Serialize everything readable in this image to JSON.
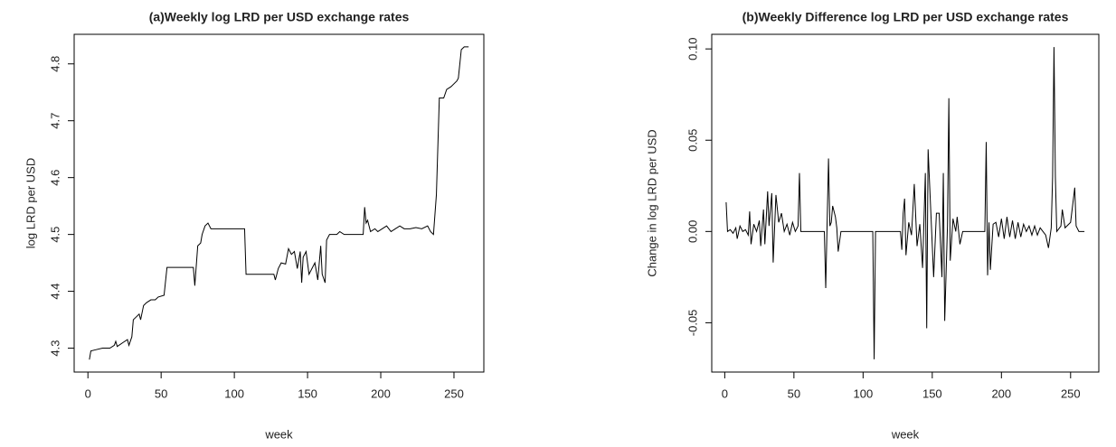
{
  "chart_data": [
    {
      "type": "line",
      "title": "(a)Weekly log LRD per USD exchange rates",
      "xlabel": "week",
      "ylabel": "log LRD per USD",
      "x": [
        1,
        2,
        5,
        10,
        15,
        18,
        19,
        20,
        24,
        27,
        28,
        30,
        31,
        33,
        35,
        36,
        38,
        40,
        43,
        46,
        48,
        52,
        54,
        72,
        73,
        75,
        77,
        78,
        80,
        82,
        84,
        107,
        108,
        127,
        128,
        130,
        132,
        135,
        137,
        139,
        141,
        143,
        145,
        146,
        147,
        149,
        151,
        153,
        155,
        157,
        159,
        160,
        162,
        163,
        165,
        170,
        172,
        175,
        188,
        189,
        190,
        191,
        193,
        196,
        198,
        201,
        204,
        207,
        210,
        213,
        216,
        220,
        224,
        228,
        232,
        234,
        236,
        238,
        240,
        243,
        245,
        248,
        252,
        253,
        255,
        257,
        260
      ],
      "series": [
        {
          "color": "#000000",
          "values": [
            4.28,
            4.295,
            4.297,
            4.3,
            4.3,
            4.305,
            4.312,
            4.303,
            4.31,
            4.315,
            4.305,
            4.32,
            4.35,
            4.355,
            4.36,
            4.35,
            4.375,
            4.38,
            4.385,
            4.385,
            4.39,
            4.393,
            4.442,
            4.442,
            4.41,
            4.48,
            4.485,
            4.5,
            4.515,
            4.52,
            4.51,
            4.51,
            4.43,
            4.43,
            4.42,
            4.44,
            4.45,
            4.448,
            4.475,
            4.465,
            4.47,
            4.44,
            4.47,
            4.415,
            4.46,
            4.47,
            4.43,
            4.44,
            4.45,
            4.42,
            4.48,
            4.43,
            4.415,
            4.49,
            4.5,
            4.5,
            4.505,
            4.5,
            4.5,
            4.548,
            4.52,
            4.525,
            4.505,
            4.51,
            4.505,
            4.51,
            4.515,
            4.505,
            4.51,
            4.515,
            4.51,
            4.51,
            4.512,
            4.51,
            4.515,
            4.505,
            4.5,
            4.57,
            4.74,
            4.74,
            4.755,
            4.76,
            4.77,
            4.775,
            4.825,
            4.83,
            4.83
          ]
        }
      ],
      "xlim": [
        -9.4,
        270.4
      ],
      "ylim": [
        4.258,
        4.852
      ],
      "xticks": [
        0,
        50,
        100,
        150,
        200,
        250
      ],
      "yticks": [
        4.3,
        4.4,
        4.5,
        4.6,
        4.7,
        4.8
      ]
    },
    {
      "type": "line",
      "title": "(b)Weekly Difference log LRD per USD exchange rates",
      "xlabel": "week",
      "ylabel": "Change in log LRD per USD",
      "x": [
        1,
        2,
        4,
        6,
        8,
        9,
        11,
        13,
        15,
        17,
        18,
        19,
        21,
        23,
        25,
        26,
        28,
        29,
        31,
        32,
        34,
        35,
        37,
        39,
        41,
        43,
        45,
        47,
        49,
        51,
        53,
        54,
        55,
        72,
        73,
        75,
        76,
        77,
        78,
        80,
        81,
        82,
        84,
        107,
        108,
        109,
        127,
        128,
        129,
        130,
        131,
        133,
        135,
        137,
        139,
        141,
        143,
        145,
        146,
        147,
        149,
        151,
        153,
        155,
        157,
        158,
        159,
        161,
        162,
        163,
        165,
        167,
        168,
        170,
        172,
        188,
        189,
        190,
        191,
        192,
        194,
        196,
        198,
        200,
        202,
        204,
        206,
        208,
        210,
        212,
        214,
        216,
        218,
        220,
        222,
        224,
        226,
        228,
        230,
        232,
        234,
        236,
        237,
        238,
        239,
        240,
        243,
        244,
        246,
        250,
        253,
        254,
        256,
        260
      ],
      "series": [
        {
          "color": "#000000",
          "values": [
            0.016,
            0,
            0.001,
            -0.001,
            0.002,
            -0.004,
            0.003,
            0,
            0.001,
            -0.002,
            0.011,
            -0.007,
            0.004,
            0,
            0.006,
            -0.008,
            0.012,
            -0.007,
            0.022,
            0.003,
            0.021,
            -0.017,
            0.02,
            0.005,
            0.01,
            0,
            0.004,
            -0.002,
            0.005,
            0,
            0.003,
            0.032,
            0,
            0,
            -0.031,
            0.04,
            0.003,
            0.005,
            0.014,
            0.008,
            0.002,
            -0.011,
            0,
            0,
            -0.07,
            0,
            0,
            -0.01,
            0.01,
            0.018,
            -0.013,
            0.005,
            -0.002,
            0.026,
            -0.008,
            0.004,
            -0.02,
            0.032,
            -0.053,
            0.045,
            0.01,
            -0.025,
            0.01,
            0.01,
            -0.025,
            0.032,
            -0.049,
            0.003,
            0.073,
            -0.016,
            0.007,
            0,
            0.008,
            -0.007,
            0,
            0,
            0.049,
            -0.024,
            0.005,
            -0.021,
            0.004,
            0.005,
            -0.003,
            0.007,
            -0.004,
            0.008,
            -0.003,
            0.006,
            -0.004,
            0.005,
            -0.003,
            0.004,
            0,
            0.003,
            -0.002,
            0.003,
            -0.002,
            0.002,
            0,
            -0.002,
            -0.009,
            0.002,
            0.03,
            0.101,
            0.03,
            0,
            0.003,
            0.012,
            0.002,
            0.005,
            0.024,
            0.003,
            0,
            0
          ]
        }
      ],
      "xlim": [
        -9.4,
        270.4
      ],
      "ylim": [
        -0.077,
        0.108
      ],
      "xticks": [
        0,
        50,
        100,
        150,
        200,
        250
      ],
      "yticks": [
        {
          "value": -0.05,
          "label": "-0.05"
        },
        {
          "value": 0,
          "label": "0.00"
        },
        {
          "value": 0.05,
          "label": "0.05"
        },
        {
          "value": 0.1,
          "label": "0.10"
        }
      ]
    }
  ]
}
